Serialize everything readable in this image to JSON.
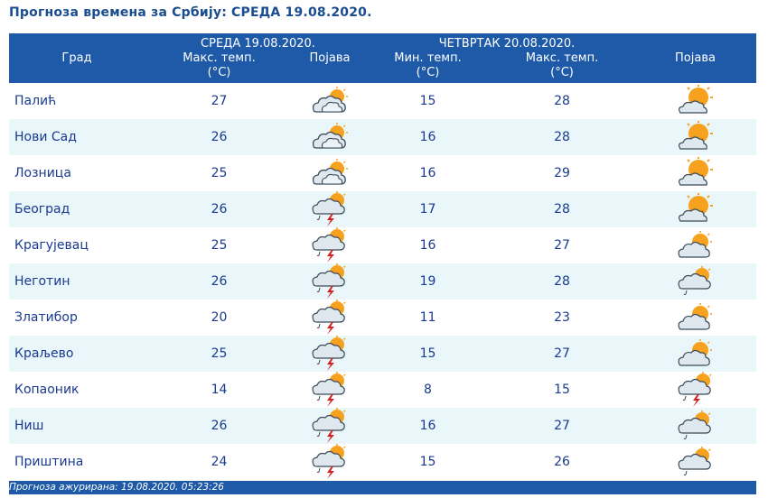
{
  "title": "Прогноза времена за Србију: СРЕДА  19.08.2020.",
  "header": {
    "city": "Град",
    "day1": "СРЕДА  19.08.2020.",
    "day1_max": "Макс. темп.",
    "day1_unit": "(°C)",
    "day1_phen": "Појава",
    "day2": "ЧЕТВРТАК  20.08.2020.",
    "day2_min": "Мин. темп.",
    "day2_min_unit": "(°C)",
    "day2_max": "Макс. темп.",
    "day2_max_unit": "(°C)",
    "day2_phen": "Појава"
  },
  "rows": [
    {
      "city": "Палић",
      "max1": "27",
      "icon1": "partly-cloudy-icon",
      "min2": "15",
      "max2": "28",
      "icon2": "mostly-sunny-icon"
    },
    {
      "city": "Нови Сад",
      "max1": "26",
      "icon1": "partly-cloudy-icon",
      "min2": "16",
      "max2": "28",
      "icon2": "mostly-sunny-icon"
    },
    {
      "city": "Лозница",
      "max1": "25",
      "icon1": "partly-cloudy-icon",
      "min2": "16",
      "max2": "29",
      "icon2": "mostly-sunny-icon"
    },
    {
      "city": "Београд",
      "max1": "26",
      "icon1": "thunderstorm-icon",
      "min2": "17",
      "max2": "28",
      "icon2": "mostly-sunny-icon"
    },
    {
      "city": "Крагујевац",
      "max1": "25",
      "icon1": "thunderstorm-icon",
      "min2": "16",
      "max2": "27",
      "icon2": "sun-behind-cloud-icon"
    },
    {
      "city": "Неготин",
      "max1": "26",
      "icon1": "thunderstorm-icon",
      "min2": "19",
      "max2": "28",
      "icon2": "cloud-rain-icon"
    },
    {
      "city": "Златибор",
      "max1": "20",
      "icon1": "thunderstorm-icon",
      "min2": "11",
      "max2": "23",
      "icon2": "sun-behind-cloud-icon"
    },
    {
      "city": "Краљево",
      "max1": "25",
      "icon1": "thunderstorm-icon",
      "min2": "15",
      "max2": "27",
      "icon2": "sun-behind-cloud-icon"
    },
    {
      "city": "Копаоник",
      "max1": "14",
      "icon1": "thunderstorm-icon",
      "min2": "8",
      "max2": "15",
      "icon2": "thunderstorm-icon"
    },
    {
      "city": "Ниш",
      "max1": "26",
      "icon1": "thunderstorm-icon",
      "min2": "16",
      "max2": "27",
      "icon2": "cloud-rain-icon"
    },
    {
      "city": "Приштина",
      "max1": "24",
      "icon1": "thunderstorm-icon",
      "min2": "15",
      "max2": "26",
      "icon2": "cloud-rain-icon"
    }
  ],
  "footer": "Прогноза ажурирана:  19.08.2020. 05:23:26",
  "colors": {
    "header_bg": "#1e5aa8",
    "row_alt": "#e9f6fa",
    "text": "#1a3a8f",
    "sun": "#f6a21e",
    "cloud": "#dce6ee",
    "bolt": "#d21f1f"
  }
}
